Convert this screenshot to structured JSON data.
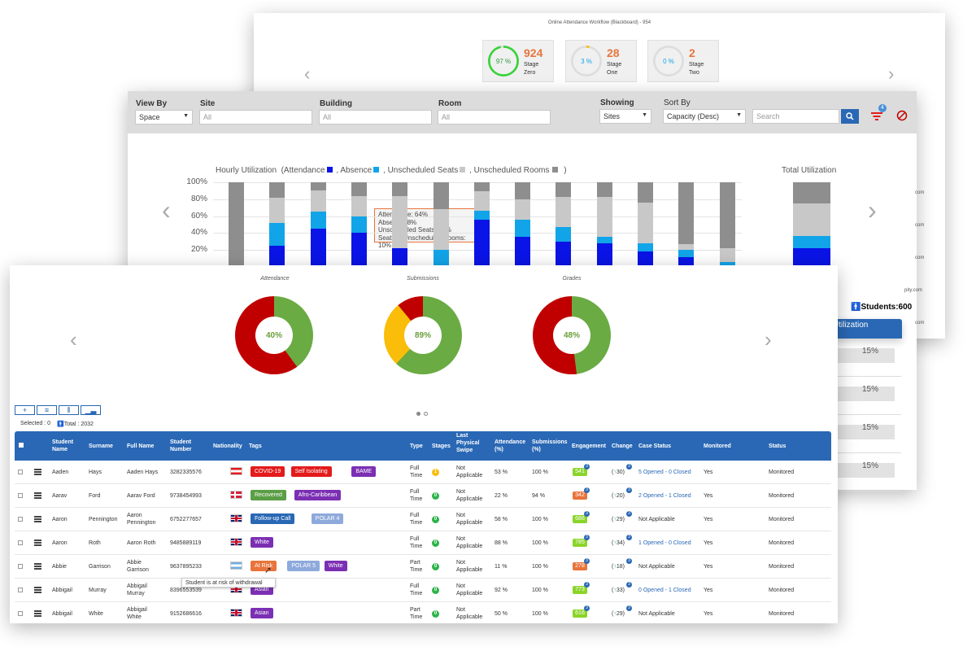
{
  "colors": {
    "accent": "#2a68b5",
    "orange": "#e8743b",
    "attendance": "#0a14e6",
    "absence": "#12a4e8",
    "unscheduled_seats": "#c8c8c8",
    "unscheduled_rooms": "#8e8e8e",
    "green": "#6aab43",
    "red": "#c00000",
    "yellow": "#f9bd0a"
  },
  "workflow": {
    "title": "Online Attendance Workflow (Blackboard) - 954",
    "stages": [
      {
        "percent": "97 %",
        "value": "924",
        "label1": "Stage",
        "label2": "Zero",
        "ring_color": "#3bd23b",
        "progress": 0.97
      },
      {
        "percent": "3 %",
        "value": "28",
        "label1": "Stage",
        "label2": "One",
        "ring_color": "#f9bd0a",
        "progress": 0.03
      },
      {
        "percent": "0 %",
        "value": "2",
        "label1": "Stage",
        "label2": "Two",
        "ring_color": "#cccccc",
        "progress": 0.0
      }
    ]
  },
  "filters": {
    "view_by_label": "View By",
    "view_by_value": "Space",
    "site_label": "Site",
    "site_value": "All",
    "building_label": "Building",
    "building_value": "All",
    "room_label": "Room",
    "room_value": "All",
    "showing_label": "Showing",
    "showing_value": "Sites",
    "sort_by_label": "Sort By",
    "sort_by_value": "Capacity (Desc)",
    "search_placeholder": "Search",
    "filter_badge": "4"
  },
  "utilization": {
    "title_prefix": "Hourly Utilization",
    "legend": [
      "(Attendance",
      ", Absence",
      ", Unscheduled Seats",
      ", Unscheduled Rooms",
      ")"
    ],
    "total_title": "Total Utilization",
    "tooltip": [
      "Attendance: 64%",
      "Absence: 8%",
      "Unscheduled Seats: 28%",
      "Seats in Unscheduled Rooms:",
      "10%"
    ],
    "students": "Students:600",
    "panel_title": "Utilization",
    "panel_values": [
      "15%",
      "15%",
      "15%",
      "15%"
    ],
    "email_fragments": [
      "com",
      "com",
      "com",
      "pity.com",
      "com"
    ]
  },
  "chart_data": {
    "type": "bar",
    "title": "Hourly Utilization",
    "ylim": [
      0,
      100
    ],
    "y_ticks": [
      "100%",
      "80%",
      "60%",
      "40%",
      "20%"
    ],
    "series": [
      {
        "name": "Attendance",
        "values": [
          0,
          25,
          45,
          40,
          22,
          0,
          56,
          36,
          30,
          28,
          18,
          12,
          2
        ]
      },
      {
        "name": "Absence",
        "values": [
          0,
          27,
          20,
          20,
          0,
          20,
          10,
          20,
          17,
          8,
          10,
          8,
          4
        ]
      },
      {
        "name": "Unscheduled Seats",
        "values": [
          0,
          30,
          25,
          24,
          62,
          48,
          23,
          24,
          36,
          47,
          48,
          7,
          16
        ]
      },
      {
        "name": "Unscheduled Rooms",
        "values": [
          100,
          18,
          10,
          16,
          16,
          32,
          11,
          20,
          17,
          17,
          24,
          73,
          78
        ]
      }
    ],
    "total": {
      "Attendance": 22,
      "Absence": 15,
      "Unscheduled Seats": 38,
      "Unscheduled Rooms": 25
    }
  },
  "donuts": [
    {
      "title": "Attendance",
      "value": "40%",
      "parts": [
        {
          "pct": 40,
          "color": "#6aab43"
        },
        {
          "pct": 60,
          "color": "#c00000"
        }
      ]
    },
    {
      "title": "Submissions",
      "value": "89%",
      "parts": [
        {
          "pct": 62,
          "color": "#6aab43"
        },
        {
          "pct": 27,
          "color": "#f9bd0a"
        },
        {
          "pct": 11,
          "color": "#c00000"
        }
      ]
    },
    {
      "title": "Grades",
      "value": "48%",
      "parts": [
        {
          "pct": 48,
          "color": "#6aab43"
        },
        {
          "pct": 52,
          "color": "#c00000"
        }
      ]
    }
  ],
  "table_meta": {
    "selected": "Selected : 0",
    "total": "Total : 2032",
    "hint": "Student is at risk of withdrawal"
  },
  "table": {
    "headers": [
      "Student Name",
      "Surname",
      "Full Name",
      "Student Number",
      "Nationality",
      "Tags",
      "Type",
      "Stages",
      "Last Physical Swipe",
      "Attendance (%)",
      "Submissions (%)",
      "Engagement",
      "Change",
      "Case Status",
      "Monitored",
      "Status"
    ],
    "rows": [
      {
        "name": "Aaden",
        "surname": "Hays",
        "full1": "Aaden Hays",
        "full2": "",
        "number": "3282335576",
        "flag": "austria",
        "tags": [
          {
            "t": "COVID-19",
            "c": "#e31b1b"
          },
          {
            "t": "Self Isolating",
            "c": "#e31b1b"
          },
          {
            "t": "BAME",
            "c": "#7b2fb3"
          }
        ],
        "type1": "Full",
        "type2": "Time",
        "stage": "1",
        "stage_color": "#f9bd0a",
        "swipe1": "Not",
        "swipe2": "Applicable",
        "attendance": "53 %",
        "submissions": "100 %",
        "eng": "541",
        "eng_color": "#8bd42a",
        "eng_badge": "3",
        "change": "30",
        "case": "5 Opened - 0 Closed",
        "case_link": true,
        "monitored": "Yes",
        "status": "Monitored"
      },
      {
        "name": "Aarav",
        "surname": "Ford",
        "full1": "Aarav Ford",
        "full2": "",
        "number": "9738454993",
        "flag": "denmark",
        "tags": [
          {
            "t": "Recovered",
            "c": "#5a9e45"
          },
          {
            "t": "Afro-Caribbean",
            "c": "#7b2fb3"
          }
        ],
        "type1": "Full",
        "type2": "Time",
        "stage": "0",
        "stage_color": "#2db34a",
        "swipe1": "Not",
        "swipe2": "Applicable",
        "attendance": "22 %",
        "submissions": "94 %",
        "eng": "342",
        "eng_color": "#e8743b",
        "eng_badge": "3",
        "change": "20",
        "case": "2 Opened - 1 Closed",
        "case_link": true,
        "monitored": "Yes",
        "status": "Monitored"
      },
      {
        "name": "Aaron",
        "surname": "Pennington",
        "full1": "Aaron",
        "full2": "Pennington",
        "number": "6752277657",
        "flag": "uk",
        "tags": [
          {
            "t": "Follow-up Call",
            "c": "#2a68b5"
          },
          {
            "t": "POLAR 4",
            "c": "#8ea9db"
          }
        ],
        "type1": "Full",
        "type2": "Time",
        "stage": "0",
        "stage_color": "#2db34a",
        "swipe1": "Not",
        "swipe2": "Applicable",
        "attendance": "58 %",
        "submissions": "100 %",
        "eng": "686",
        "eng_color": "#8bd42a",
        "eng_badge": "3",
        "change": "29",
        "case": "Not Applicable",
        "case_link": false,
        "monitored": "Yes",
        "status": "Monitored"
      },
      {
        "name": "Aaron",
        "surname": "Roth",
        "full1": "Aaron Roth",
        "full2": "",
        "number": "9485889119",
        "flag": "uk",
        "tags": [
          {
            "t": "White",
            "c": "#7b2fb3"
          }
        ],
        "type1": "Full",
        "type2": "Time",
        "stage": "0",
        "stage_color": "#2db34a",
        "swipe1": "Not",
        "swipe2": "Applicable",
        "attendance": "88 %",
        "submissions": "100 %",
        "eng": "785",
        "eng_color": "#8bd42a",
        "eng_badge": "3",
        "change": "34",
        "case": "1 Opened - 0 Closed",
        "case_link": true,
        "monitored": "Yes",
        "status": "Monitored"
      },
      {
        "name": "Abbie",
        "surname": "Garrison",
        "full1": "Abbie",
        "full2": "Garrison",
        "number": "9637895233",
        "flag": "argentina",
        "tags": [
          {
            "t": "At Risk",
            "c": "#e8743b"
          },
          {
            "t": "POLAR 5",
            "c": "#8ea9db"
          },
          {
            "t": "White",
            "c": "#7b2fb3"
          }
        ],
        "type1": "Part",
        "type2": "Time",
        "stage": "0",
        "stage_color": "#2db34a",
        "swipe1": "Not",
        "swipe2": "Applicable",
        "attendance": "11 %",
        "submissions": "100 %",
        "eng": "278",
        "eng_color": "#e8743b",
        "eng_badge": "3",
        "change": "18",
        "case": "Not Applicable",
        "case_link": false,
        "monitored": "Yes",
        "status": "Monitored"
      },
      {
        "name": "Abbigail",
        "surname": "Murray",
        "full1": "Abbigail",
        "full2": "Murray",
        "number": "8396553539",
        "flag": "uk",
        "tags": [
          {
            "t": "Asian",
            "c": "#7b2fb3"
          }
        ],
        "type1": "Full",
        "type2": "Time",
        "stage": "0",
        "stage_color": "#2db34a",
        "swipe1": "Not",
        "swipe2": "Applicable",
        "attendance": "92 %",
        "submissions": "100 %",
        "eng": "773",
        "eng_color": "#8bd42a",
        "eng_badge": "3",
        "change": "33",
        "case": "0 Opened - 1 Closed",
        "case_link": true,
        "monitored": "Yes",
        "status": "Monitored"
      },
      {
        "name": "Abbigail",
        "surname": "White",
        "full1": "Abbigail",
        "full2": "White",
        "number": "9152686616",
        "flag": "uk",
        "tags": [
          {
            "t": "Asian",
            "c": "#7b2fb3"
          }
        ],
        "type1": "Part",
        "type2": "Time",
        "stage": "0",
        "stage_color": "#2db34a",
        "swipe1": "Not",
        "swipe2": "Applicable",
        "attendance": "50 %",
        "submissions": "100 %",
        "eng": "616",
        "eng_color": "#8bd42a",
        "eng_badge": "3",
        "change": "29",
        "case": "Not Applicable",
        "case_link": false,
        "monitored": "Yes",
        "status": "Monitored"
      }
    ]
  }
}
